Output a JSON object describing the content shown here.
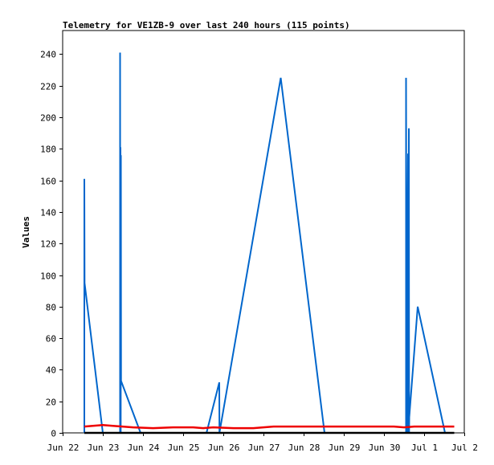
{
  "chart_data": {
    "type": "line",
    "title": "Telemetry for VE1ZB-9 over last 240 hours (115 points)",
    "xlabel": "",
    "ylabel": "Values",
    "xlim": [
      "2020-06-22 00:00",
      "2020-07-02 00:00"
    ],
    "ylim": [
      0,
      255
    ],
    "x_ticks": [
      "Jun 22",
      "Jun 23",
      "Jun 24",
      "Jun 25",
      "Jun 26",
      "Jun 27",
      "Jun 28",
      "Jun 29",
      "Jun 30",
      "Jul 1",
      "Jul 2"
    ],
    "y_ticks": [
      0,
      20,
      40,
      60,
      80,
      100,
      120,
      140,
      160,
      180,
      200,
      220,
      240
    ],
    "grid": false,
    "colors": {
      "series_blue": "#0066cc",
      "series_red": "#ee0000",
      "series_black": "#000000",
      "axes": "#000000"
    },
    "series": [
      {
        "color": "#0066cc",
        "points": [
          [
            "2020-06-22 12:58",
            0
          ],
          [
            "2020-06-22 12:58",
            161
          ],
          [
            "2020-06-22 13:05",
            95
          ],
          [
            "2020-06-23 00:00",
            0
          ],
          [
            "2020-06-23 10:19",
            0
          ],
          [
            "2020-06-23 10:19",
            241
          ],
          [
            "2020-06-23 10:26",
            0
          ],
          [
            "2020-06-23 10:34",
            181
          ],
          [
            "2020-06-23 10:41",
            0
          ],
          [
            "2020-06-23 10:48",
            176
          ],
          [
            "2020-06-23 10:55",
            33
          ],
          [
            "2020-06-23 22:34",
            0
          ],
          [
            "2020-06-25 13:58",
            0
          ],
          [
            "2020-06-25 21:36",
            32
          ],
          [
            "2020-06-25 21:43",
            0
          ],
          [
            "2020-06-27 10:19",
            225
          ],
          [
            "2020-06-28 12:29",
            0
          ],
          [
            "2020-06-30 13:12",
            0
          ],
          [
            "2020-06-30 13:12",
            225
          ],
          [
            "2020-06-30 13:34",
            0
          ],
          [
            "2020-06-30 14:24",
            177
          ],
          [
            "2020-06-30 14:31",
            0
          ],
          [
            "2020-06-30 14:53",
            193
          ],
          [
            "2020-06-30 15:00",
            0
          ],
          [
            "2020-06-30 15:07",
            10
          ],
          [
            "2020-06-30 20:10",
            80
          ],
          [
            "2020-07-01 12:29",
            0
          ]
        ]
      },
      {
        "color": "#ee0000",
        "points": [
          [
            "2020-06-22 12:58",
            4
          ],
          [
            "2020-06-22 18:00",
            4.5
          ],
          [
            "2020-06-23 00:00",
            5
          ],
          [
            "2020-06-23 06:00",
            4.5
          ],
          [
            "2020-06-23 18:00",
            3.5
          ],
          [
            "2020-06-24 06:00",
            3
          ],
          [
            "2020-06-24 18:00",
            3.5
          ],
          [
            "2020-06-25 06:00",
            3.5
          ],
          [
            "2020-06-25 12:00",
            3
          ],
          [
            "2020-06-25 18:00",
            3.5
          ],
          [
            "2020-06-26 06:00",
            3
          ],
          [
            "2020-06-26 18:00",
            3
          ],
          [
            "2020-06-27 06:00",
            4
          ],
          [
            "2020-06-28 06:00",
            4
          ],
          [
            "2020-06-29 06:00",
            4
          ],
          [
            "2020-06-30 06:00",
            4
          ],
          [
            "2020-06-30 12:00",
            3.5
          ],
          [
            "2020-06-30 18:00",
            4
          ],
          [
            "2020-07-01 06:00",
            4
          ],
          [
            "2020-07-01 18:00",
            4
          ]
        ]
      },
      {
        "color": "#000000",
        "points": [
          [
            "2020-06-22 12:58",
            0
          ],
          [
            "2020-07-01 18:00",
            0
          ]
        ]
      }
    ]
  }
}
